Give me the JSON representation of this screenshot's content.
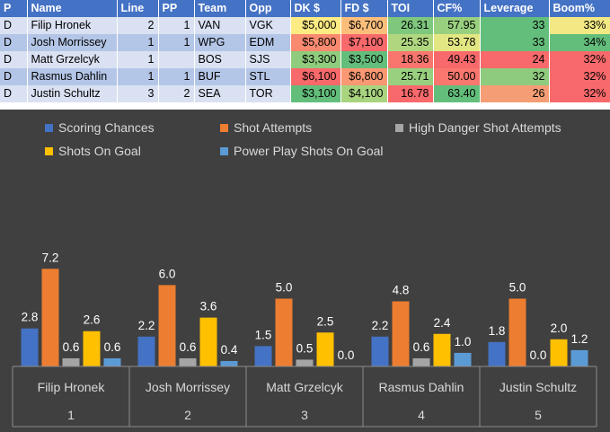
{
  "table": {
    "columns": [
      "P",
      "Name",
      "Line",
      "PP",
      "Team",
      "Opp",
      "DK $",
      "FD $",
      "TOI",
      "CF%",
      "Leverage",
      "Boom%"
    ],
    "rows": [
      {
        "p": "D",
        "name": "Filip Hronek",
        "line": "2",
        "pp": "1",
        "team": "VAN",
        "opp": "VGK",
        "dk": "$5,000",
        "fd": "$6,700",
        "toi": "26.31",
        "cf": "57.95",
        "leverage": "33",
        "boom": "33%",
        "colors": {
          "dk": "#fdeb84",
          "fd": "#fcbf7b",
          "toi": "#7ec77d",
          "cf": "#99d07f",
          "leverage": "#63be7b",
          "boom": "#f2e884"
        }
      },
      {
        "p": "D",
        "name": "Josh Morrissey",
        "line": "1",
        "pp": "1",
        "team": "WPG",
        "opp": "EDM",
        "dk": "$5,800",
        "fd": "$7,100",
        "toi": "25.35",
        "cf": "53.78",
        "leverage": "33",
        "boom": "34%",
        "colors": {
          "dk": "#f98a70",
          "fd": "#f8696b",
          "toi": "#b0d780",
          "cf": "#e3e783",
          "leverage": "#63be7b",
          "boom": "#63be7b"
        }
      },
      {
        "p": "D",
        "name": "Matt Grzelcyk",
        "line": "1",
        "pp": "",
        "team": "BOS",
        "opp": "SJS",
        "dk": "$3,300",
        "fd": "$3,500",
        "toi": "18.36",
        "cf": "49.43",
        "leverage": "24",
        "boom": "32%",
        "colors": {
          "dk": "#90cc7e",
          "fd": "#63be7b",
          "toi": "#f8766d",
          "cf": "#f8696b",
          "leverage": "#f8696b",
          "boom": "#f8696b"
        }
      },
      {
        "p": "D",
        "name": "Rasmus Dahlin",
        "line": "1",
        "pp": "1",
        "team": "BUF",
        "opp": "STL",
        "dk": "$6,100",
        "fd": "$6,800",
        "toi": "25.71",
        "cf": "50.00",
        "leverage": "32",
        "boom": "32%",
        "colors": {
          "dk": "#f8696b",
          "fd": "#fa9873",
          "toi": "#99d07f",
          "cf": "#f9776e",
          "leverage": "#8fcb7e",
          "boom": "#f8696b"
        }
      },
      {
        "p": "D",
        "name": "Justin Schultz",
        "line": "3",
        "pp": "2",
        "team": "SEA",
        "opp": "TOR",
        "dk": "$3,100",
        "fd": "$4,100",
        "toi": "16.78",
        "cf": "63.40",
        "leverage": "26",
        "boom": "32%",
        "colors": {
          "dk": "#63be7b",
          "fd": "#a8d47f",
          "toi": "#f8696b",
          "cf": "#63be7b",
          "leverage": "#f59e75",
          "boom": "#f8696b"
        }
      }
    ]
  },
  "chart_data": {
    "type": "bar",
    "title": "",
    "ylim": [
      0,
      8
    ],
    "categories": [
      "Filip Hronek",
      "Josh Morrissey",
      "Matt Grzelcyk",
      "Rasmus Dahlin",
      "Justin Schultz"
    ],
    "category_numbers": [
      "1",
      "2",
      "3",
      "4",
      "5"
    ],
    "series": [
      {
        "name": "Scoring Chances",
        "color": "#4472c4",
        "values": [
          2.8,
          2.2,
          1.5,
          2.2,
          1.8
        ]
      },
      {
        "name": "Shot Attempts",
        "color": "#ed7d31",
        "values": [
          7.2,
          6.0,
          5.0,
          4.8,
          5.0
        ]
      },
      {
        "name": "High Danger Shot Attempts",
        "color": "#a5a5a5",
        "values": [
          0.6,
          0.6,
          0.5,
          0.6,
          0.0
        ]
      },
      {
        "name": "Shots On Goal",
        "color": "#ffc000",
        "values": [
          2.6,
          3.6,
          2.5,
          2.4,
          2.0
        ]
      },
      {
        "name": "Power Play Shots On Goal",
        "color": "#5b9bd5",
        "values": [
          0.6,
          0.4,
          0.0,
          1.0,
          1.2
        ]
      }
    ],
    "legend_position": "top",
    "background": "#404040",
    "label_color": "#ffffff"
  }
}
